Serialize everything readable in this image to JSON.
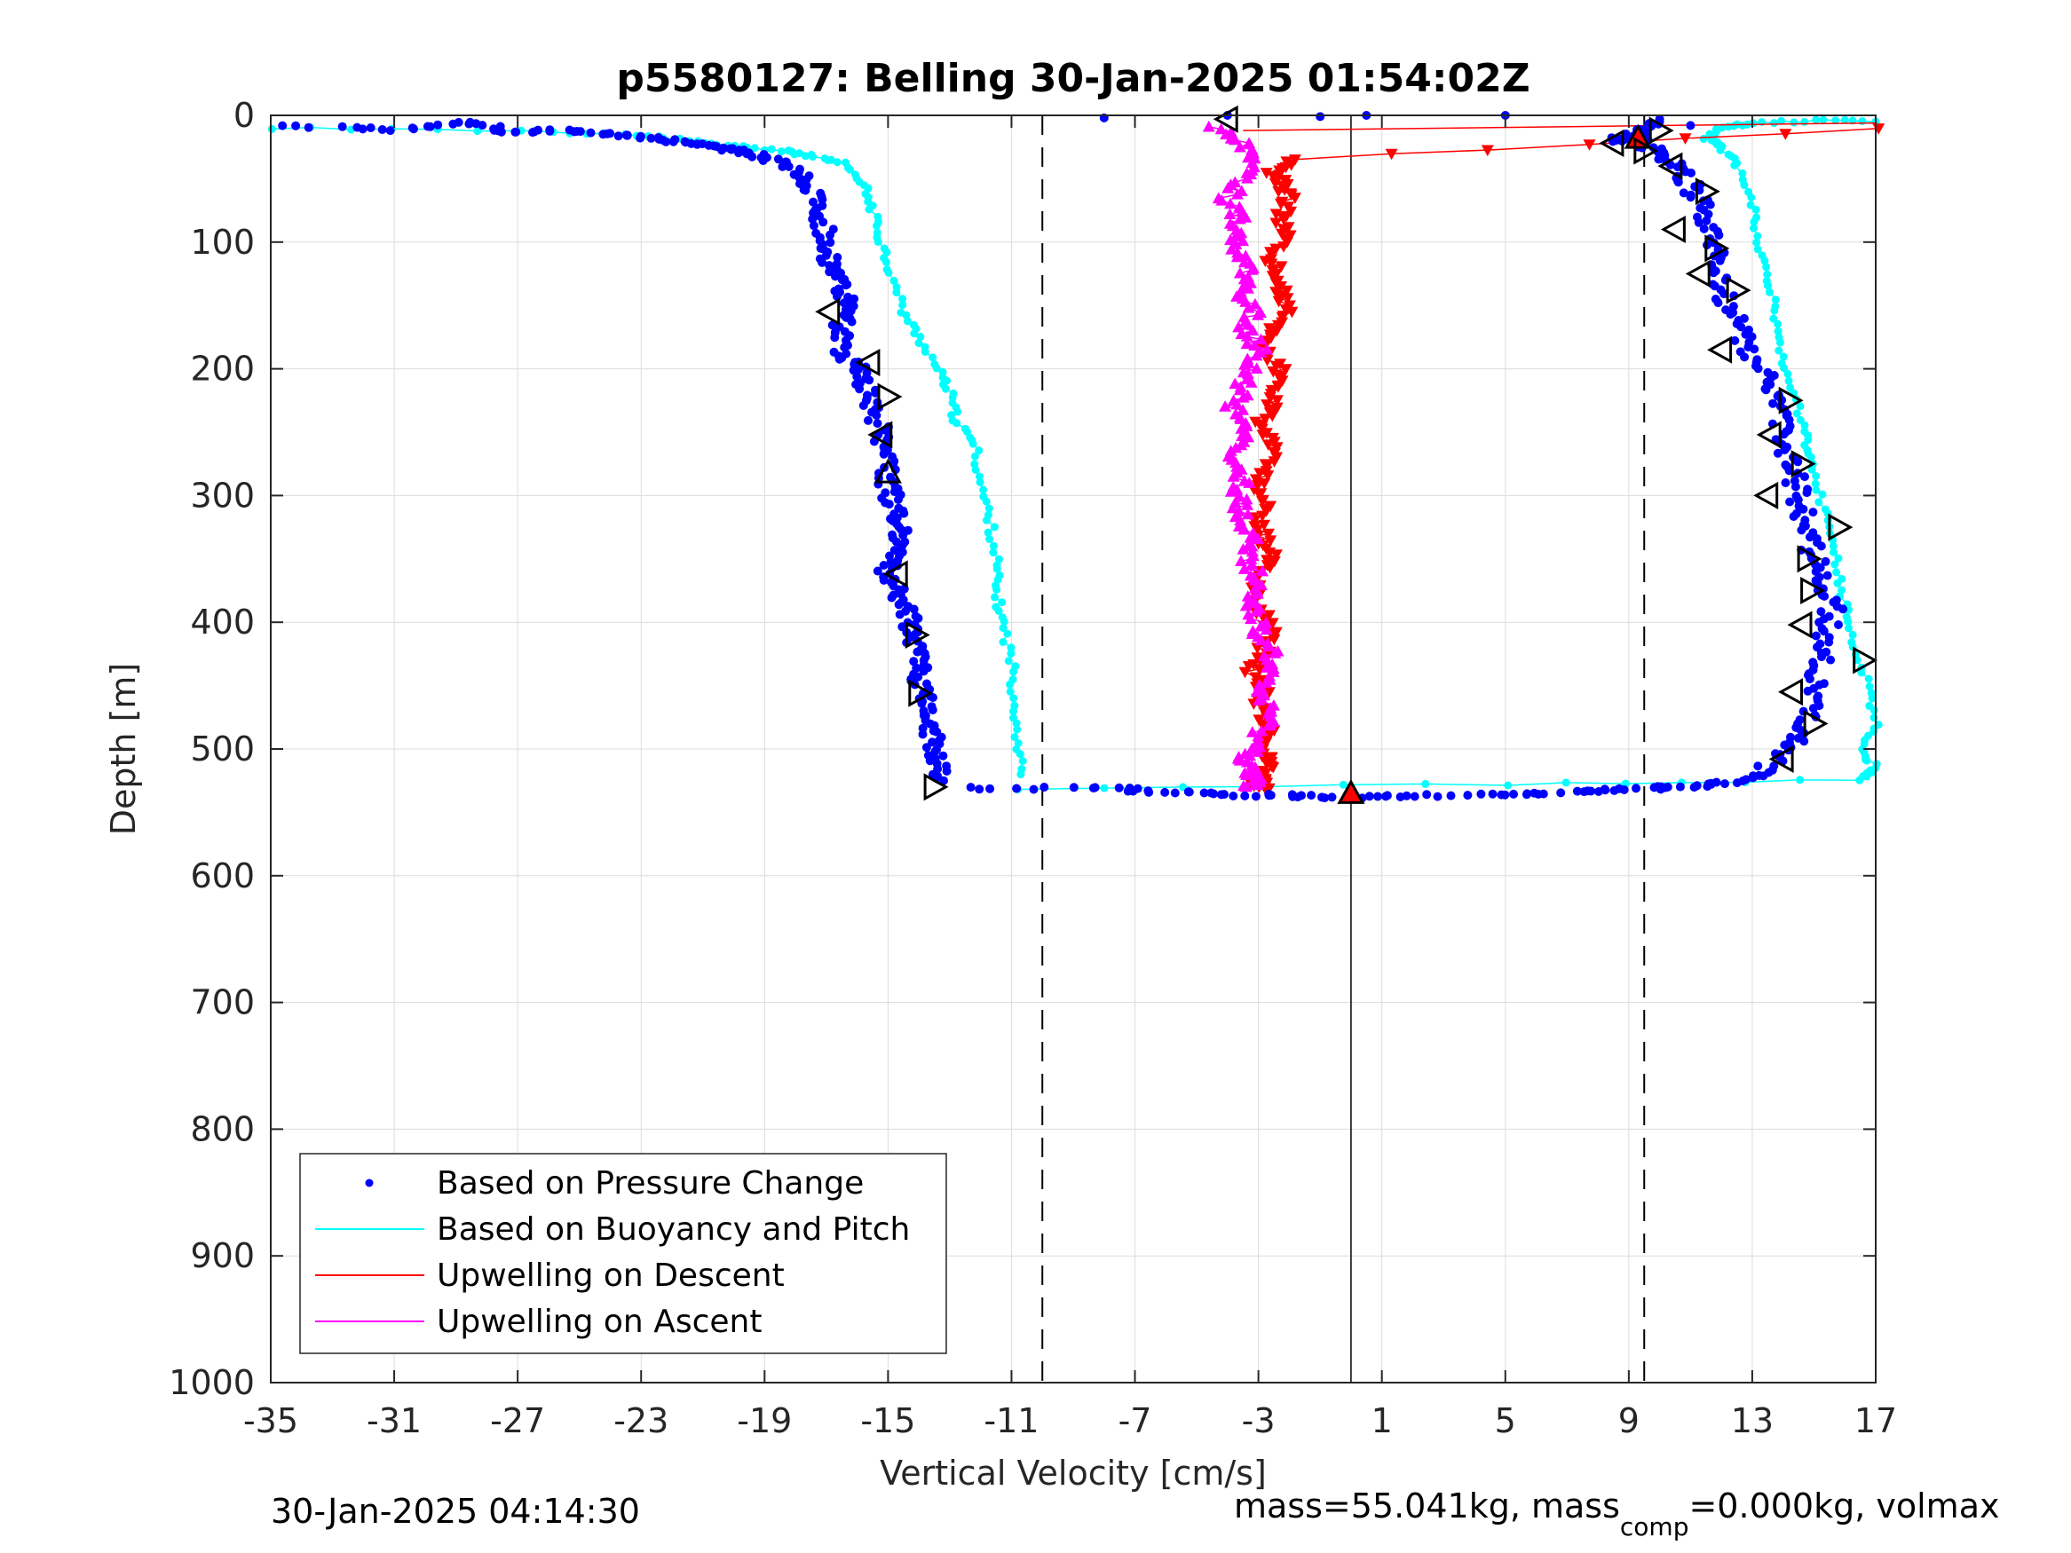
{
  "footer": {
    "timestamp": "30-Jan-2025 04:14:30",
    "mass_text_1": "mass=55.041kg, mass",
    "mass_sub": "comp",
    "mass_text_2": "=0.000kg, volmax"
  },
  "chart_data": {
    "type": "scatter",
    "title": "p5580127: Belling 30-Jan-2025 01:54:02Z",
    "xlabel": "Vertical Velocity [cm/s]",
    "ylabel": "Depth [m]",
    "xlim": [
      -35,
      17
    ],
    "ylim": [
      0,
      1000
    ],
    "y_reversed": true,
    "xticks": [
      -35,
      -31,
      -27,
      -23,
      -19,
      -15,
      -11,
      -7,
      -3,
      1,
      5,
      9,
      13,
      17
    ],
    "yticks": [
      0,
      100,
      200,
      300,
      400,
      500,
      600,
      700,
      800,
      900,
      1000
    ],
    "grid": true,
    "legend_position": "bottom-left",
    "colors": {
      "pressure": "#0000ff",
      "buoyancy": "#00ffff",
      "upwelling_descent": "#ff0000",
      "upwelling_ascent": "#ff00ff",
      "reference": "#000000"
    },
    "reference_lines": [
      {
        "x": -10,
        "style": "dashed"
      },
      {
        "x": 0,
        "style": "solid"
      },
      {
        "x": 9.5,
        "style": "dashed"
      }
    ],
    "series": [
      {
        "name": "Based on Pressure Change",
        "marker": "dot",
        "descent": {
          "velocity": [
            -34.3,
            -30.8,
            -28.5,
            -27.3,
            -25.6,
            -23.9,
            -22.5,
            -21.5,
            -20.5,
            -19.5,
            -18.8,
            -18.0,
            -17.4,
            -17.2,
            -17.0,
            -16.9,
            -16.8,
            -16.5,
            -16.3,
            -16.6,
            -16.4,
            -16.0,
            -15.8,
            -15.5,
            -15.2,
            -15.0,
            -15.1,
            -14.9,
            -14.8,
            -14.6,
            -14.7,
            -15.0,
            -14.7,
            -14.4,
            -14.2,
            -14.1,
            -14.0,
            -14.0,
            -13.8,
            -13.7,
            -13.5,
            -13.3,
            -13.2
          ],
          "depth": [
            9,
            11,
            5,
            13,
            12,
            15,
            18,
            22,
            26,
            29,
            34,
            44,
            58,
            75,
            95,
            110,
            125,
            140,
            155,
            172,
            188,
            200,
            215,
            230,
            250,
            265,
            285,
            300,
            315,
            330,
            345,
            360,
            375,
            390,
            405,
            420,
            435,
            450,
            465,
            480,
            495,
            510,
            525
          ]
        },
        "ascent": {
          "velocity": [
            -12.5,
            -8.0,
            -6.0,
            -4.0,
            -2.0,
            0.0,
            2.0,
            5.0,
            7.0,
            9.0,
            10.5,
            12.0,
            13.2,
            14.0,
            14.5,
            14.8,
            15.0,
            15.2,
            15.4,
            15.6,
            15.3,
            15.0,
            14.8,
            14.6,
            14.4,
            14.2,
            14.0,
            13.8,
            13.5,
            13.0,
            12.6,
            12.2,
            12.0,
            11.8,
            11.6,
            11.3,
            11.0,
            10.5,
            10.0,
            9.5,
            9.0,
            8.5,
            9.5,
            10.0,
            -8.0,
            -4.0,
            -1.0,
            0.5,
            5.0,
            10.0,
            11.0
          ],
          "depth": [
            531,
            531,
            534,
            536,
            537,
            538,
            537,
            536,
            534,
            532,
            530,
            528,
            520,
            505,
            490,
            470,
            450,
            430,
            410,
            390,
            370,
            350,
            330,
            310,
            290,
            270,
            250,
            230,
            210,
            190,
            170,
            150,
            130,
            110,
            90,
            70,
            55,
            40,
            30,
            22,
            18,
            20,
            12,
            5,
            2,
            0,
            1,
            0,
            0,
            3,
            8
          ]
        }
      },
      {
        "name": "Based on Buoyancy and Pitch",
        "marker": "line+dot",
        "descent": {
          "velocity": [
            -35.0,
            -27.0,
            -23.5,
            -21.5,
            -20.0,
            -18.5,
            -17.5,
            -16.5,
            -15.8,
            -15.5,
            -15.2,
            -14.9,
            -14.5,
            -14.0,
            -13.4,
            -13.0,
            -12.8,
            -12.2,
            -12.0,
            -11.7,
            -11.5,
            -11.5,
            -11.3,
            -11.0,
            -10.9,
            -10.8,
            -10.7
          ],
          "depth": [
            10,
            12,
            15,
            20,
            24,
            28,
            32,
            38,
            55,
            75,
            100,
            125,
            155,
            175,
            200,
            220,
            240,
            260,
            290,
            320,
            350,
            375,
            400,
            430,
            460,
            490,
            520
          ]
        },
        "ascent": {
          "velocity": [
            -10.7,
            5.0,
            16.5,
            17.0,
            16.5,
            17.0,
            16.8,
            16.3,
            16.0,
            15.8,
            15.5,
            15.2,
            14.9,
            14.7,
            14.4,
            14.0,
            13.8,
            13.5,
            13.2,
            13.0,
            12.5,
            12.0,
            11.5,
            12.0,
            13.0,
            15.0,
            17.0
          ],
          "depth": [
            531,
            528,
            524,
            515,
            500,
            480,
            450,
            420,
            390,
            360,
            330,
            300,
            270,
            250,
            220,
            190,
            160,
            130,
            100,
            70,
            40,
            25,
            18,
            10,
            6,
            4,
            5
          ]
        }
      },
      {
        "name": "Upwelling on Descent",
        "marker": "triangle-down",
        "velocity": [
          17.0,
          -2.0,
          -2.5,
          -2.2,
          -2.0,
          -2.3,
          -2.0,
          -2.6,
          -2.4,
          -2.2,
          -2.1,
          -2.5,
          -2.8,
          -2.3,
          -2.4,
          -2.6,
          -2.9,
          -2.5,
          -2.7,
          -3.0,
          -2.8,
          -3.1,
          -2.8,
          -2.6,
          -2.9,
          -3.1,
          -2.8,
          -2.6,
          -2.9,
          -3.2,
          -2.8,
          -3.0,
          -2.7,
          -2.9,
          -2.6,
          -2.8,
          -3.0,
          -2.7
        ],
        "depth": [
          10,
          35,
          45,
          55,
          65,
          80,
          95,
          110,
          125,
          140,
          155,
          170,
          185,
          200,
          215,
          230,
          245,
          260,
          275,
          290,
          305,
          320,
          335,
          350,
          365,
          380,
          395,
          410,
          425,
          440,
          455,
          470,
          485,
          500,
          510,
          520,
          528,
          532
        ]
      },
      {
        "name": "Upwelling on Ascent",
        "marker": "triangle-up",
        "velocity": [
          -4.5,
          -3.5,
          -3.0,
          -3.5,
          -4.0,
          -3.6,
          -3.9,
          -3.5,
          -3.3,
          -3.6,
          -3.2,
          -3.4,
          -3.0,
          -3.3,
          -3.5,
          -3.8,
          -3.4,
          -3.6,
          -3.9,
          -3.5,
          -3.7,
          -3.4,
          -3.2,
          -3.5,
          -3.0,
          -3.3,
          -3.1,
          -2.9,
          -2.6,
          -2.8,
          -3.0,
          -2.7,
          -2.9,
          -3.2,
          -3.5,
          -3.2,
          -3.0,
          -3.4
        ],
        "depth": [
          10,
          20,
          35,
          50,
          65,
          80,
          95,
          110,
          125,
          140,
          155,
          170,
          185,
          200,
          215,
          230,
          245,
          260,
          275,
          290,
          305,
          320,
          335,
          350,
          365,
          380,
          395,
          410,
          425,
          440,
          455,
          470,
          485,
          500,
          510,
          518,
          525,
          530
        ]
      }
    ],
    "annotations": {
      "triangle_markers": [
        {
          "velocity": -16.9,
          "depth": 155,
          "direction": "left"
        },
        {
          "velocity": -15.6,
          "depth": 195,
          "direction": "left"
        },
        {
          "velocity": -15.0,
          "depth": 222,
          "direction": "right"
        },
        {
          "velocity": -15.2,
          "depth": 252,
          "direction": "left"
        },
        {
          "velocity": -15.0,
          "depth": 282,
          "direction": "up"
        },
        {
          "velocity": -14.7,
          "depth": 362,
          "direction": "left"
        },
        {
          "velocity": -14.1,
          "depth": 410,
          "direction": "right"
        },
        {
          "velocity": -14.0,
          "depth": 456,
          "direction": "right"
        },
        {
          "velocity": -13.5,
          "depth": 530,
          "direction": "right"
        },
        {
          "velocity": -4.0,
          "depth": 3,
          "direction": "left"
        },
        {
          "velocity": 0.0,
          "depth": 535,
          "direction": "up"
        },
        {
          "velocity": 8.5,
          "depth": 22,
          "direction": "left"
        },
        {
          "velocity": 9.3,
          "depth": 18,
          "direction": "up"
        },
        {
          "velocity": 10.0,
          "depth": 12,
          "direction": "right"
        },
        {
          "velocity": 9.5,
          "depth": 28,
          "direction": "right"
        },
        {
          "velocity": 10.4,
          "depth": 40,
          "direction": "left"
        },
        {
          "velocity": 11.5,
          "depth": 60,
          "direction": "right"
        },
        {
          "velocity": 10.5,
          "depth": 90,
          "direction": "left"
        },
        {
          "velocity": 11.8,
          "depth": 105,
          "direction": "right"
        },
        {
          "velocity": 11.3,
          "depth": 125,
          "direction": "left"
        },
        {
          "velocity": 12.5,
          "depth": 138,
          "direction": "right"
        },
        {
          "velocity": 12.0,
          "depth": 185,
          "direction": "left"
        },
        {
          "velocity": 14.2,
          "depth": 225,
          "direction": "right"
        },
        {
          "velocity": 13.6,
          "depth": 252,
          "direction": "left"
        },
        {
          "velocity": 14.6,
          "depth": 275,
          "direction": "right"
        },
        {
          "velocity": 13.5,
          "depth": 300,
          "direction": "left"
        },
        {
          "velocity": 15.8,
          "depth": 325,
          "direction": "right"
        },
        {
          "velocity": 14.8,
          "depth": 350,
          "direction": "right"
        },
        {
          "velocity": 14.9,
          "depth": 375,
          "direction": "right"
        },
        {
          "velocity": 14.6,
          "depth": 402,
          "direction": "left"
        },
        {
          "velocity": 16.6,
          "depth": 430,
          "direction": "right"
        },
        {
          "velocity": 14.3,
          "depth": 455,
          "direction": "left"
        },
        {
          "velocity": 15.0,
          "depth": 480,
          "direction": "right"
        },
        {
          "velocity": 14.0,
          "depth": 508,
          "direction": "left"
        }
      ]
    }
  }
}
